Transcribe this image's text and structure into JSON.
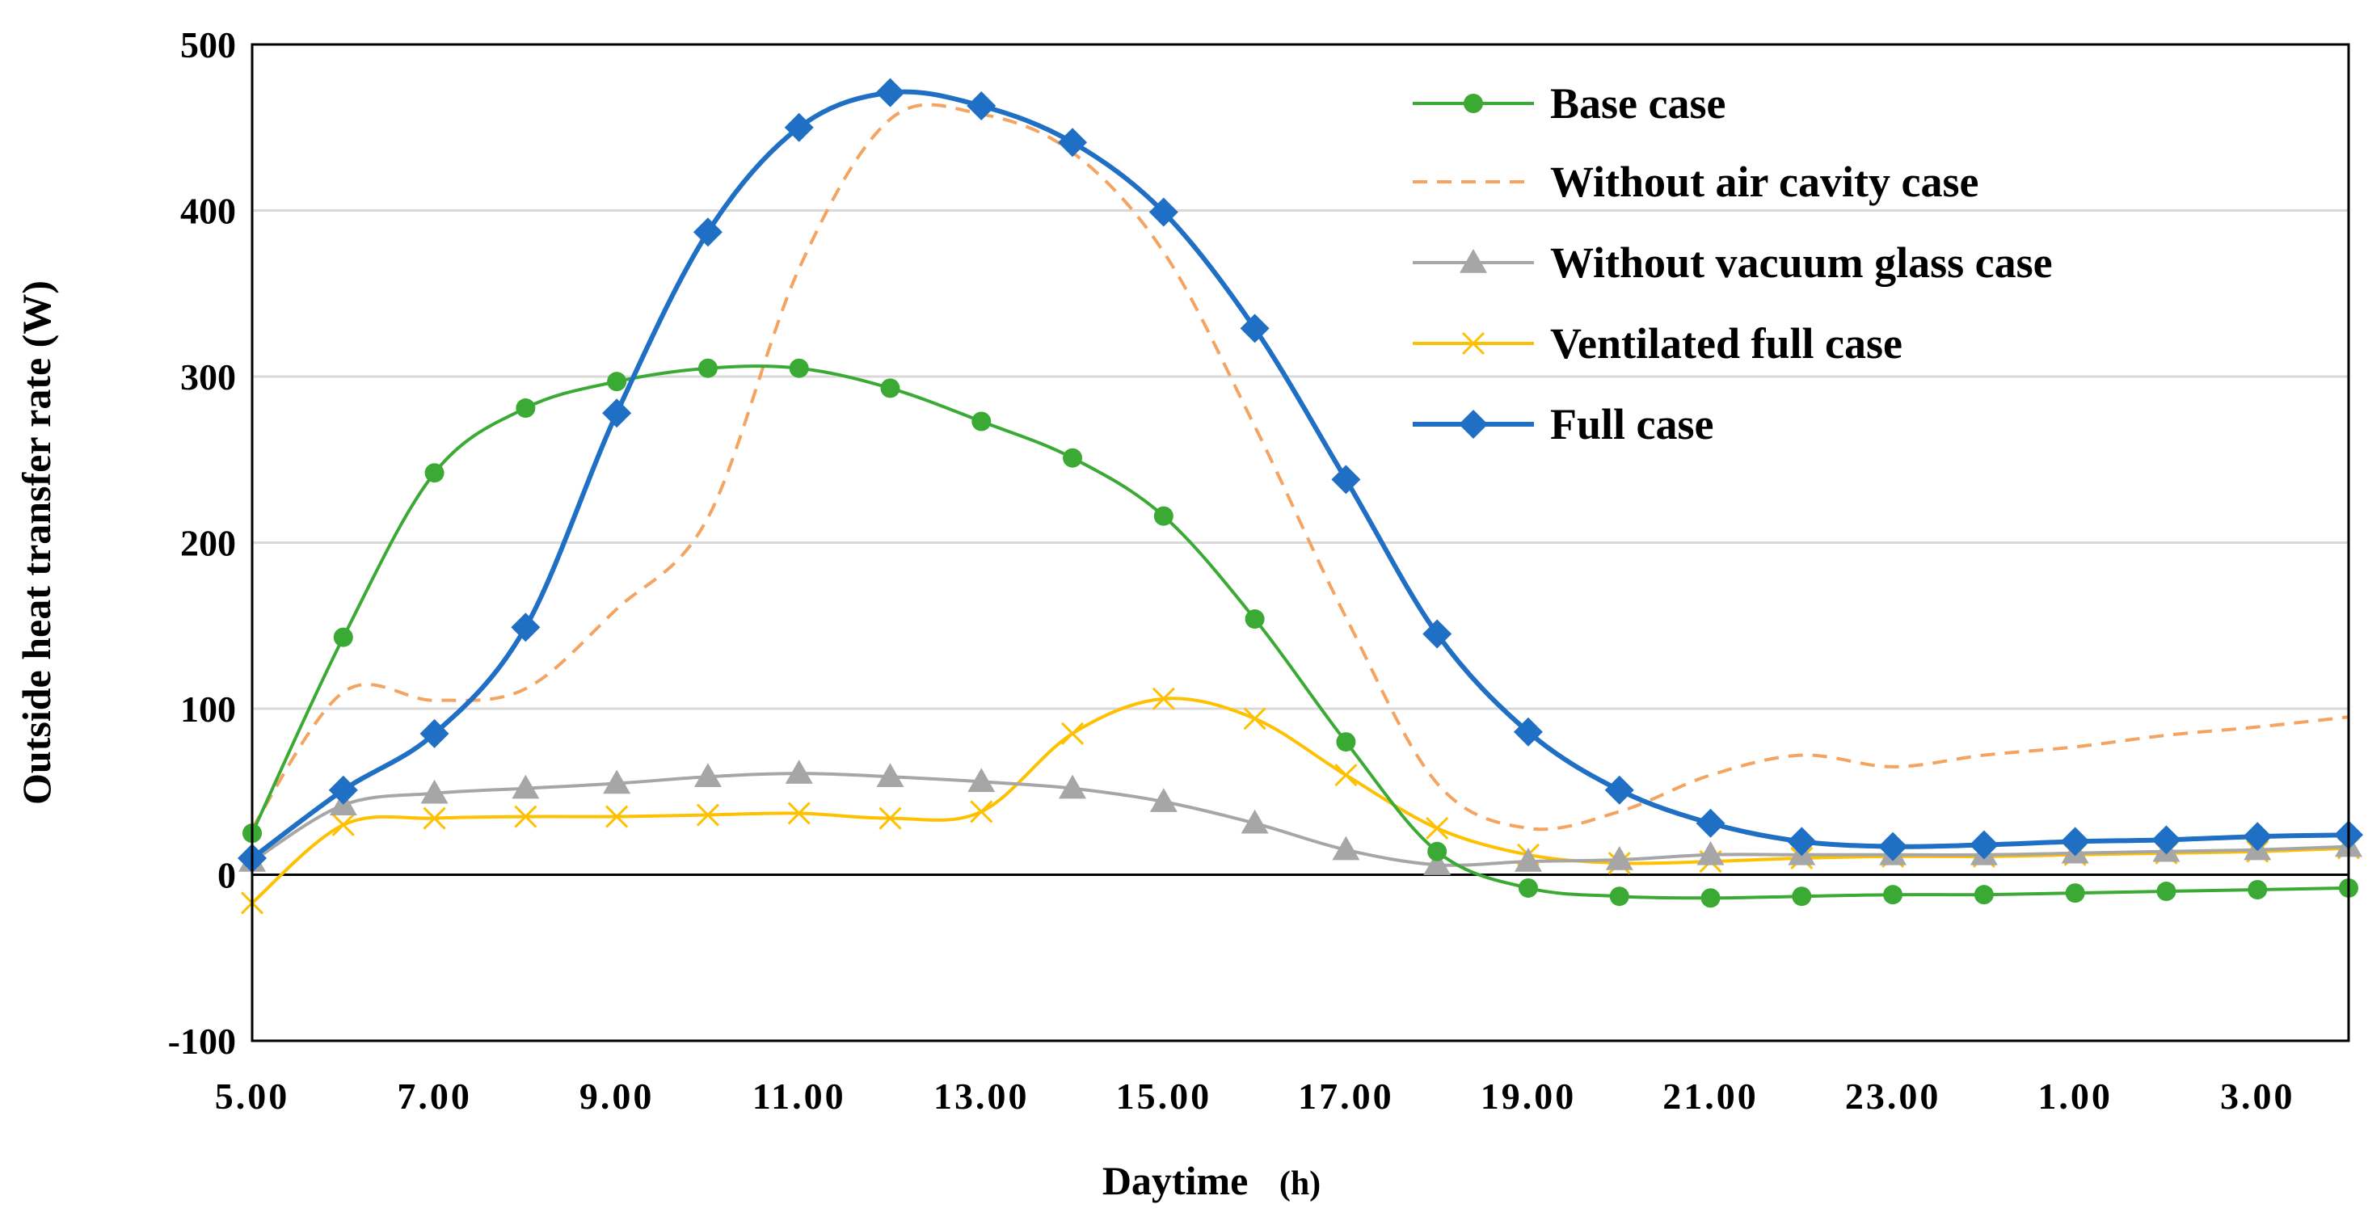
{
  "chart_data": {
    "type": "line",
    "title": "",
    "xlabel": "Daytime",
    "xlabel_unit": "(h)",
    "ylabel": "Outside heat transfer rate (W)",
    "ylim": [
      -100,
      500
    ],
    "yticks": [
      -100,
      0,
      100,
      200,
      300,
      400,
      500
    ],
    "ytick_labels": [
      "-100",
      "0",
      "100",
      "200",
      "300",
      "400",
      "500"
    ],
    "x_hours": [
      5,
      6,
      7,
      8,
      9,
      10,
      11,
      12,
      13,
      14,
      15,
      16,
      17,
      18,
      19,
      20,
      21,
      22,
      23,
      24,
      25,
      26,
      27,
      28
    ],
    "xticks_labels": [
      "5.00",
      "7.00",
      "9.00",
      "11.00",
      "13.00",
      "15.00",
      "17.00",
      "19.00",
      "21.00",
      "23.00",
      "1.00",
      "3.00"
    ],
    "grid": "horizontal",
    "legend_position": "top-right",
    "series": [
      {
        "name": "Base case",
        "color": "#3aaa35",
        "style": "solid",
        "marker": "circle",
        "values": [
          25,
          143,
          242,
          281,
          297,
          305,
          305,
          293,
          273,
          251,
          216,
          154,
          80,
          14,
          -8,
          -13,
          -14,
          -13,
          -12,
          -12,
          -11,
          -10,
          -9,
          -8
        ]
      },
      {
        "name": "Without air cavity case",
        "color": "#f4a460",
        "style": "dashed",
        "marker": "none",
        "values": [
          28,
          110,
          105,
          112,
          160,
          215,
          365,
          455,
          458,
          435,
          375,
          270,
          155,
          55,
          28,
          38,
          60,
          72,
          65,
          72,
          77,
          84,
          89,
          95
        ]
      },
      {
        "name": "Without vacuum glass case",
        "color": "#a6a6a6",
        "style": "solid",
        "marker": "triangle",
        "values": [
          8,
          42,
          49,
          52,
          55,
          59,
          61,
          59,
          56,
          52,
          44,
          31,
          15,
          6,
          8,
          9,
          12,
          12,
          12,
          12,
          13,
          14,
          15,
          17
        ]
      },
      {
        "name": "Ventilated full case",
        "color": "#ffc000",
        "style": "solid",
        "marker": "x",
        "values": [
          -17,
          30,
          34,
          35,
          35,
          36,
          37,
          34,
          38,
          85,
          106,
          94,
          60,
          28,
          12,
          7,
          8,
          10,
          11,
          11,
          12,
          13,
          14,
          16
        ]
      },
      {
        "name": "Full case",
        "color": "#1f6fc5",
        "style": "solid",
        "marker": "diamond",
        "values": [
          10,
          51,
          85,
          149,
          278,
          387,
          450,
          471,
          463,
          441,
          399,
          329,
          238,
          145,
          86,
          51,
          31,
          20,
          17,
          18,
          20,
          21,
          23,
          24
        ]
      }
    ]
  }
}
